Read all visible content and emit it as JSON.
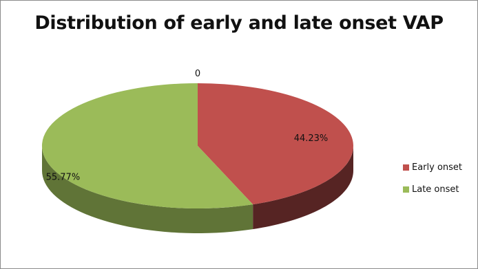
{
  "colors": {
    "early": "#c0504d",
    "late": "#9bbb59"
  },
  "chart_data": {
    "type": "pie",
    "title": "Distribution of early and late onset VAP",
    "three_d": true,
    "categories": [
      "Early onset",
      "Late onset"
    ],
    "values": [
      44.23,
      55.77
    ],
    "data_labels": [
      "44.23%",
      "55.77%"
    ],
    "extra_label": "0",
    "legend_position": "right"
  }
}
